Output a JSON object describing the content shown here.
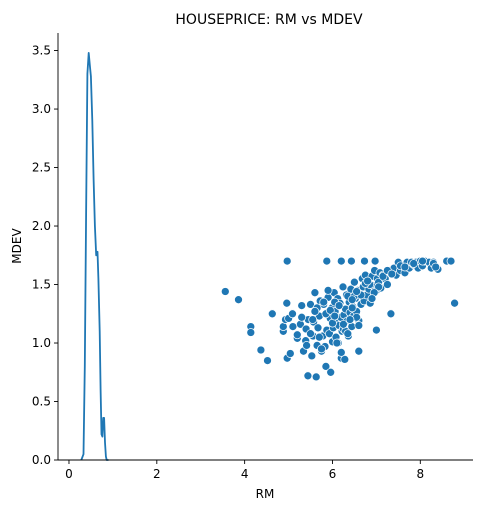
{
  "chart_data": {
    "type": "scatter",
    "title": "HOUSEPRICE: RM  vs MDEV",
    "xlabel": "RM",
    "ylabel": "MDEV",
    "xlim": [
      -0.25,
      9.2
    ],
    "ylim": [
      0,
      3.65
    ],
    "x_ticks": [
      0,
      2,
      4,
      6,
      8
    ],
    "x_tick_labels": [
      "0",
      "2",
      "4",
      "6",
      "8"
    ],
    "y_ticks": [
      0.0,
      0.5,
      1.0,
      1.5,
      2.0,
      2.5,
      3.0,
      3.5
    ],
    "y_tick_labels": [
      "0.0",
      "0.5",
      "1.0",
      "1.5",
      "2.0",
      "2.5",
      "3.0",
      "3.5"
    ],
    "grid": false,
    "colors": {
      "series": "#1f77b4",
      "marker_edge": "#ffffff",
      "axes": "#000000"
    },
    "series": [
      {
        "kind": "kde_line",
        "x": [
          0.28,
          0.33,
          0.36,
          0.39,
          0.42,
          0.45,
          0.48,
          0.5,
          0.53,
          0.56,
          0.59,
          0.62,
          0.65,
          0.67,
          0.7,
          0.72,
          0.74,
          0.76,
          0.78,
          0.8,
          0.82,
          0.84,
          0.86,
          0.88,
          0.9
        ],
        "values": [
          0.0,
          0.05,
          0.8,
          2.1,
          3.3,
          3.48,
          3.35,
          3.28,
          2.9,
          2.4,
          2.0,
          1.75,
          1.78,
          1.55,
          1.1,
          0.6,
          0.22,
          0.2,
          0.36,
          0.36,
          0.15,
          0.03,
          0.0,
          0.0,
          0.0
        ]
      },
      {
        "kind": "scatter",
        "x": [
          3.56,
          3.86,
          4.14,
          4.14,
          4.37,
          4.52,
          4.63,
          4.88,
          4.88,
          4.93,
          4.96,
          4.97,
          5.0,
          5.04,
          5.09,
          5.2,
          5.27,
          5.3,
          5.34,
          5.39,
          5.41,
          5.44,
          5.45,
          5.5,
          5.53,
          5.56,
          5.57,
          5.6,
          5.63,
          5.65,
          5.67,
          5.7,
          5.72,
          5.75,
          5.78,
          5.8,
          5.83,
          5.85,
          5.87,
          5.89,
          5.9,
          5.93,
          5.95,
          5.96,
          5.99,
          6.0,
          6.02,
          6.04,
          6.06,
          6.08,
          6.1,
          6.12,
          6.13,
          6.15,
          6.17,
          6.19,
          6.2,
          6.22,
          6.24,
          6.26,
          6.28,
          6.3,
          6.32,
          6.34,
          6.36,
          6.38,
          6.4,
          6.42,
          6.44,
          6.46,
          6.48,
          6.5,
          6.52,
          6.55,
          6.57,
          6.6,
          6.62,
          6.65,
          6.68,
          6.7,
          6.72,
          6.75,
          6.78,
          6.8,
          6.83,
          6.86,
          6.9,
          6.93,
          6.96,
          7.0,
          7.02,
          7.05,
          7.08,
          7.1,
          7.15,
          7.2,
          7.25,
          7.3,
          7.33,
          7.4,
          7.45,
          7.5,
          7.55,
          7.6,
          7.65,
          7.7,
          7.75,
          7.8,
          7.85,
          7.9,
          7.95,
          8.0,
          8.05,
          8.1,
          8.2,
          8.25,
          8.3,
          8.4,
          8.6,
          8.7,
          8.78,
          4.97,
          5.87,
          6.2,
          6.43,
          6.73,
          6.97,
          5.4,
          5.55,
          5.65,
          5.85,
          6.05,
          6.25,
          6.35,
          6.45,
          6.55,
          6.3,
          6.1,
          5.95,
          6.0,
          6.15,
          6.4,
          6.6,
          6.5,
          5.8,
          5.7,
          6.05,
          6.35,
          6.25,
          5.9,
          6.45,
          6.65,
          6.85,
          7.05,
          7.15,
          6.95,
          6.75,
          6.55,
          5.5,
          5.3,
          5.1,
          5.2,
          5.6,
          5.75,
          6.2,
          6.6,
          7.0,
          7.25,
          6.8,
          6.9,
          7.35,
          7.55,
          7.65,
          7.85,
          8.05,
          8.3,
          8.35
        ],
        "values": [
          1.44,
          1.37,
          1.14,
          1.09,
          0.94,
          0.85,
          1.25,
          1.1,
          1.14,
          1.2,
          1.34,
          0.87,
          1.21,
          0.91,
          1.25,
          1.04,
          1.16,
          1.32,
          0.93,
          1.02,
          0.98,
          0.72,
          1.2,
          1.33,
          0.89,
          1.06,
          1.18,
          1.43,
          0.71,
          0.98,
          1.13,
          1.23,
          1.36,
          0.93,
          1.06,
          1.33,
          0.97,
          0.8,
          1.11,
          1.26,
          1.39,
          1.08,
          1.21,
          0.75,
          1.3,
          1.01,
          1.13,
          1.43,
          1.27,
          1.05,
          1.18,
          1.38,
          1.0,
          1.15,
          1.34,
          1.22,
          0.87,
          1.1,
          1.48,
          1.24,
          0.86,
          1.29,
          1.41,
          1.19,
          1.06,
          1.35,
          1.26,
          1.46,
          1.14,
          1.31,
          1.23,
          1.52,
          1.38,
          1.27,
          1.45,
          1.19,
          1.42,
          1.33,
          1.55,
          1.48,
          1.36,
          1.58,
          1.41,
          1.52,
          1.46,
          1.34,
          1.57,
          1.49,
          1.62,
          1.45,
          1.55,
          1.52,
          1.6,
          1.47,
          1.58,
          1.55,
          1.5,
          1.62,
          1.25,
          1.64,
          1.58,
          1.69,
          1.62,
          1.66,
          1.6,
          1.69,
          1.64,
          1.69,
          1.67,
          1.69,
          1.64,
          1.7,
          1.66,
          1.7,
          1.69,
          1.64,
          1.69,
          1.63,
          1.7,
          1.7,
          1.34,
          1.7,
          1.7,
          1.7,
          1.7,
          1.7,
          1.7,
          1.12,
          1.2,
          1.3,
          1.25,
          1.35,
          1.12,
          1.4,
          1.3,
          1.22,
          1.1,
          1.0,
          1.28,
          1.17,
          1.32,
          1.2,
          1.15,
          1.4,
          1.35,
          1.05,
          1.23,
          1.08,
          1.16,
          1.45,
          1.37,
          1.41,
          1.5,
          1.48,
          1.57,
          1.43,
          1.51,
          1.44,
          1.08,
          1.22,
          1.14,
          1.07,
          1.27,
          0.95,
          0.92,
          0.93,
          1.11,
          1.62,
          1.53,
          1.38,
          1.59,
          1.66,
          1.65,
          1.68,
          1.7,
          1.68,
          1.65
        ]
      }
    ]
  }
}
